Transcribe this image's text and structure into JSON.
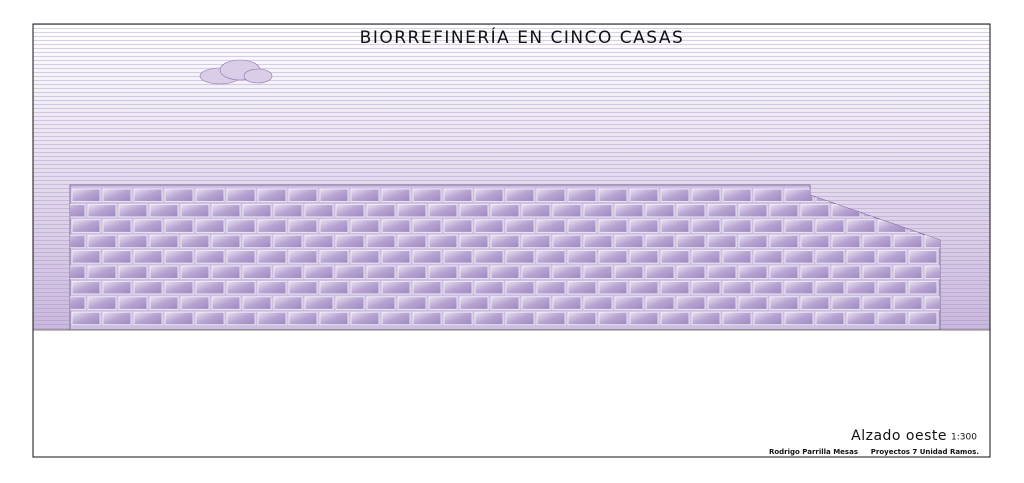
{
  "header": {
    "title": "BIORREFINERÍA EN CINCO CASAS"
  },
  "caption": {
    "view": "Alzado oeste",
    "scale": "1:300",
    "author": "Rodrigo Parrilla Mesas",
    "course": "Proyectos 7 Unidad Ramos."
  }
}
